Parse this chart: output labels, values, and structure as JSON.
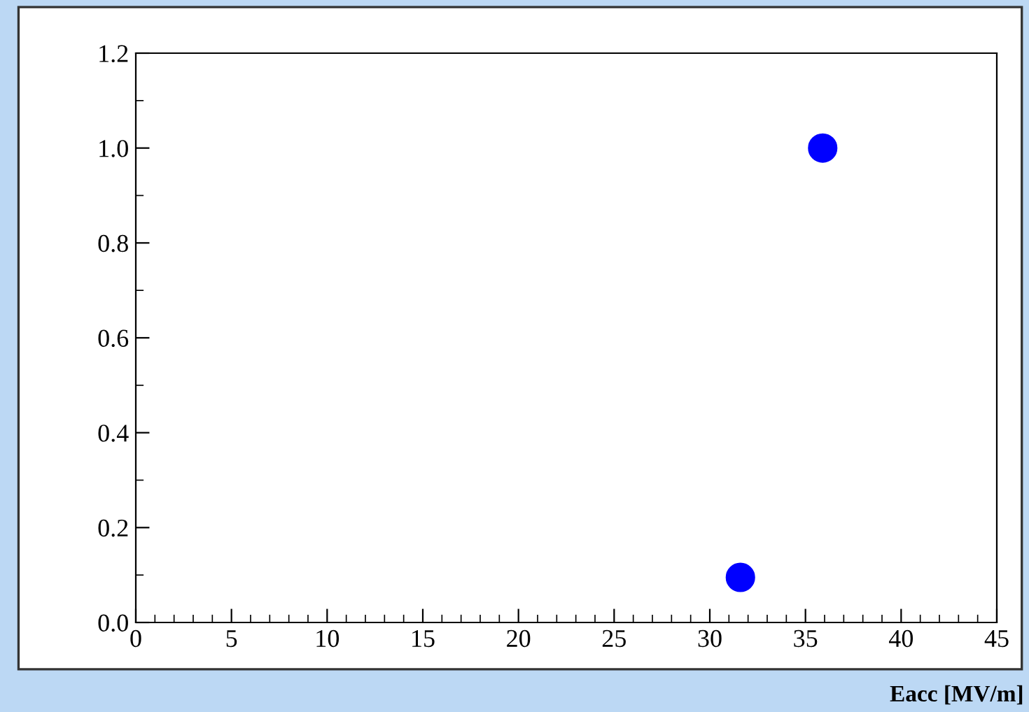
{
  "chart_data": {
    "type": "scatter",
    "xlabel": "Eacc [MV/m]",
    "x": [
      31.6,
      35.9
    ],
    "series": [
      {
        "color": "#0000ff",
        "values": [
          0.095,
          1.0
        ]
      }
    ],
    "xlim": [
      0,
      45
    ],
    "xticks": [
      0,
      5,
      10,
      15,
      20,
      25,
      30,
      35,
      40,
      45
    ],
    "ylim": [
      0,
      1.2
    ],
    "yticks": [
      {
        "value": 0.0,
        "label": "0.0"
      },
      {
        "value": 0.2,
        "label": "0.2"
      },
      {
        "value": 0.4,
        "label": "0.4"
      },
      {
        "value": 0.6,
        "label": "0.6"
      },
      {
        "value": 0.8,
        "label": "0.8"
      },
      {
        "value": 1.0,
        "label": "1.0"
      },
      {
        "value": 1.2,
        "label": "1.2"
      }
    ],
    "grid": false,
    "marker": "circle"
  }
}
